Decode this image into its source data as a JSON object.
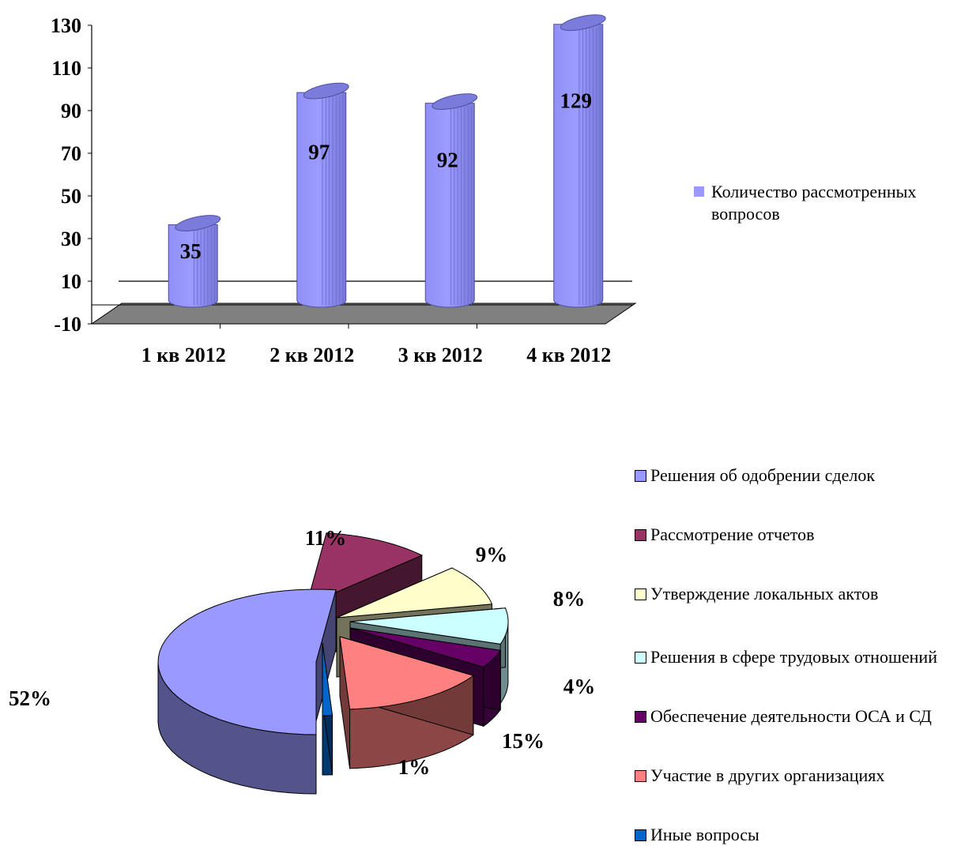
{
  "charts": [
    {
      "chart_data": {
        "type": "bar",
        "categories": [
          "1 кв 2012",
          "2 кв 2012",
          "3 кв 2012",
          "4 кв 2012"
        ],
        "series": [
          {
            "name": "Количество рассмотренных вопросов",
            "values": [
              35,
              97,
              92,
              129
            ]
          }
        ],
        "yticks": [
          130,
          110,
          90,
          70,
          50,
          30,
          10,
          -10
        ],
        "ylim": [
          -10,
          130
        ],
        "grid": false,
        "legend": "right",
        "bar_color": "#9999ff",
        "floor_color": "#808080"
      }
    },
    {
      "chart_data": {
        "type": "pie",
        "labels": [
          "Решения об одобрении сделок",
          "Рассмотрение отчетов",
          "Утверждение локальных актов",
          "Решения в сфере трудовых отношений",
          "Обеспечение деятельности ОСА и СД",
          "Участие в других организациях",
          "Иные вопросы"
        ],
        "values": [
          52,
          11,
          9,
          8,
          4,
          15,
          1
        ],
        "value_labels": [
          "52%",
          "11%",
          "9%",
          "8%",
          "4%",
          "15%",
          "1%"
        ],
        "colors": [
          "#9999ff",
          "#993366",
          "#ffffcc",
          "#ccffff",
          "#660066",
          "#ff8080",
          "#0066cc"
        ],
        "legend": "right"
      }
    }
  ]
}
